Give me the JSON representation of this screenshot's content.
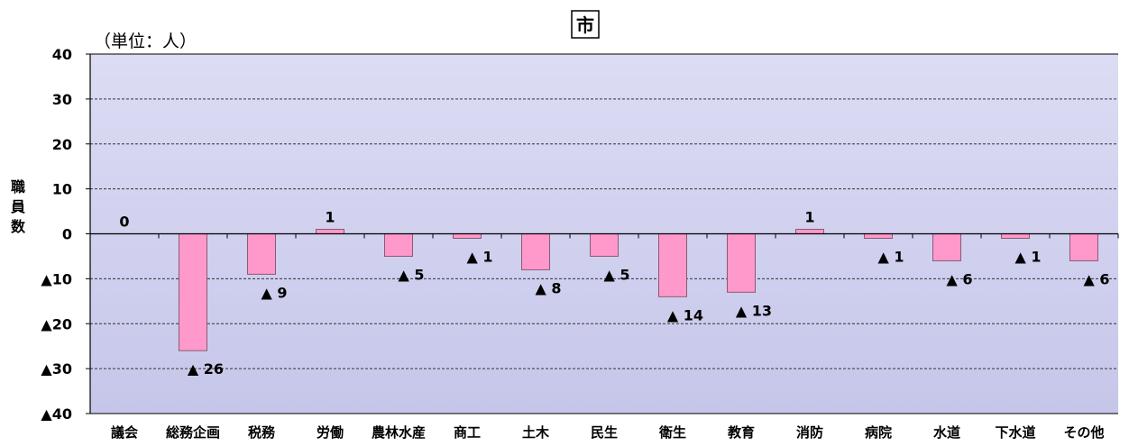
{
  "chart_data": {
    "type": "bar",
    "title": "市",
    "unit_note": "（単位：人）",
    "ylabel": "職員数",
    "ylim": [
      -40,
      40
    ],
    "yticks": [
      40,
      30,
      20,
      10,
      0,
      -10,
      -20,
      -30,
      -40
    ],
    "ytick_labels": [
      "40",
      "30",
      "20",
      "10",
      "0",
      "▲10",
      "▲20",
      "▲30",
      "▲40"
    ],
    "grid": "horizontal-dashed",
    "legend": "none",
    "categories": [
      "議会",
      "総務企画",
      "税務",
      "労働",
      "農林水産",
      "商工",
      "土木",
      "民生",
      "衛生",
      "教育",
      "消防",
      "病院",
      "水道",
      "下水道",
      "その他"
    ],
    "values": [
      0,
      -26,
      -9,
      1,
      -5,
      -1,
      -8,
      -5,
      -14,
      -13,
      1,
      -1,
      -6,
      -1,
      -6
    ],
    "data_labels": [
      "0",
      "▲ 26",
      "▲ 9",
      "1",
      "▲ 5",
      "▲ 1",
      "▲ 8",
      "▲ 5",
      "▲ 14",
      "▲ 13",
      "1",
      "▲ 1",
      "▲ 6",
      "▲ 1",
      "▲ 6"
    ],
    "colors": {
      "bar_fill": "#ff99cc",
      "bar_stroke": "#8b5a72",
      "plot_bg_top": "#dcdcf4",
      "plot_bg_bottom": "#c6c6ea",
      "grid": "#333333"
    }
  }
}
